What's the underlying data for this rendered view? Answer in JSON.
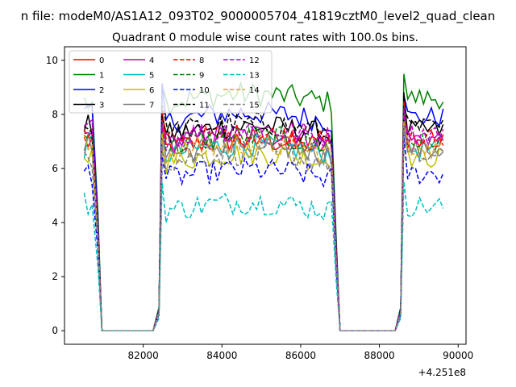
{
  "chart_data": {
    "type": "line",
    "suptitle": "n file: modeM0/AS1A12_093T02_9000005704_41819cztM0_level2_quad_clean",
    "title": "Quadrant 0 module wise count rates with 100.0s bins.",
    "xlabel": "",
    "ylabel": "",
    "x_offset_label": "+4.251e8",
    "xlim": [
      80000,
      90200
    ],
    "ylim": [
      -0.5,
      10.5
    ],
    "xticks": [
      82000,
      84000,
      86000,
      88000,
      90000
    ],
    "xtick_labels": [
      "82000",
      "84000",
      "86000",
      "88000",
      "90000"
    ],
    "yticks": [
      0,
      2,
      4,
      6,
      8,
      10
    ],
    "ytick_labels": [
      "0",
      "2",
      "4",
      "6",
      "8",
      "10"
    ],
    "grid": false,
    "legend": "upper-left, 4 columns",
    "active_intervals": [
      [
        80500,
        80750
      ],
      [
        82480,
        86800
      ],
      [
        88620,
        89700
      ]
    ],
    "gaps": [
      [
        80750,
        80950,
        82300,
        82480
      ],
      [
        86800,
        87000,
        88450,
        88620
      ]
    ],
    "series": [
      {
        "name": "0",
        "color": "#ff0000",
        "dash": "solid",
        "level": 7.0
      },
      {
        "name": "1",
        "color": "#008000",
        "dash": "solid",
        "level": 8.7
      },
      {
        "name": "2",
        "color": "#0000ff",
        "dash": "solid",
        "level": 8.0
      },
      {
        "name": "3",
        "color": "#000000",
        "dash": "solid",
        "level": 7.5
      },
      {
        "name": "4",
        "color": "#bf00bf",
        "dash": "solid",
        "level": 7.2
      },
      {
        "name": "5",
        "color": "#00bfbf",
        "dash": "solid",
        "level": 6.8
      },
      {
        "name": "6",
        "color": "#bfbf00",
        "dash": "solid",
        "level": 6.5
      },
      {
        "name": "7",
        "color": "#808080",
        "dash": "solid",
        "level": 6.8
      },
      {
        "name": "8",
        "color": "#ff0000",
        "dash": "dashed",
        "level": 7.2
      },
      {
        "name": "9",
        "color": "#008000",
        "dash": "dashed",
        "level": 7.1
      },
      {
        "name": "10",
        "color": "#0000ff",
        "dash": "dashed",
        "level": 5.9
      },
      {
        "name": "11",
        "color": "#000000",
        "dash": "dashed",
        "level": 7.6
      },
      {
        "name": "12",
        "color": "#bf00bf",
        "dash": "dashed",
        "level": 7.4
      },
      {
        "name": "13",
        "color": "#00bfbf",
        "dash": "dashed",
        "level": 4.7
      },
      {
        "name": "14",
        "color": "#daa520",
        "dash": "dashed",
        "level": 6.8
      },
      {
        "name": "15",
        "color": "#808080",
        "dash": "dashed",
        "level": 6.5
      }
    ]
  }
}
